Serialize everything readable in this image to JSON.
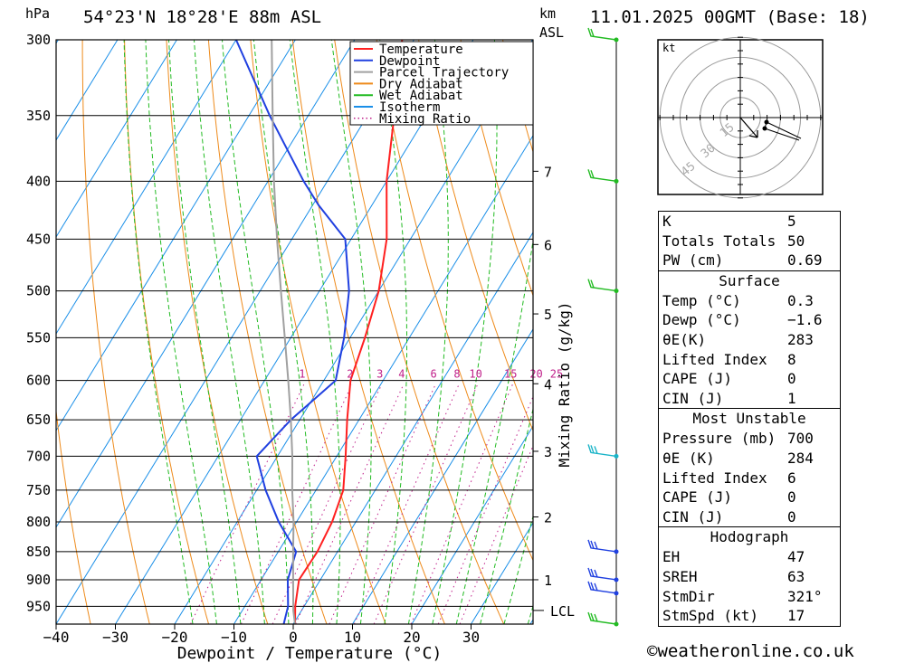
{
  "header": {
    "pressure_unit": "hPa",
    "location": "54°23'N 18°28'E 88m ASL",
    "height_unit_km": "km",
    "height_unit_asl": "ASL",
    "run": "11.01.2025 00GMT (Base: 18)"
  },
  "chart_data": {
    "type": "skew-t log-p diagram",
    "x_axis": {
      "label": "Dewpoint / Temperature (°C)",
      "ticks": [
        -40,
        -30,
        -20,
        -10,
        0,
        10,
        20,
        30
      ],
      "tick_labels": [
        "−40",
        "−30",
        "−20",
        "−10",
        "0",
        "10",
        "20",
        "30"
      ]
    },
    "y_axis": {
      "label": "hPa",
      "scale": "log",
      "ticks": [
        300,
        350,
        400,
        450,
        500,
        550,
        600,
        650,
        700,
        750,
        800,
        850,
        900,
        950
      ],
      "range": [
        300,
        985
      ]
    },
    "height_axis": {
      "label": "km ASL",
      "ticks": [
        {
          "km": "1",
          "p": 900
        },
        {
          "km": "2",
          "p": 792
        },
        {
          "km": "3",
          "p": 693
        },
        {
          "km": "4",
          "p": 604
        },
        {
          "km": "5",
          "p": 524
        },
        {
          "km": "6",
          "p": 455
        },
        {
          "km": "7",
          "p": 392
        }
      ],
      "lcl_label": "LCL",
      "lcl_p": 958
    },
    "mixing_ratio": {
      "axis_label": "Mixing Ratio (g/kg)",
      "values": [
        "1",
        "2",
        "3",
        "4",
        "6",
        "8",
        "10",
        "15",
        "20",
        "25"
      ],
      "label_p": 600
    },
    "legend": [
      {
        "name": "Temperature",
        "color": "#ff2020",
        "style": "solid"
      },
      {
        "name": "Dewpoint",
        "color": "#2040e0",
        "style": "solid"
      },
      {
        "name": "Parcel Trajectory",
        "color": "#a0a0a0",
        "style": "solid"
      },
      {
        "name": "Dry Adiabat",
        "color": "#ee8a1a",
        "style": "solid"
      },
      {
        "name": "Wet Adiabat",
        "color": "#22bb22",
        "style": "solid"
      },
      {
        "name": "Isotherm",
        "color": "#1a8fe8",
        "style": "solid"
      },
      {
        "name": "Mixing Ratio",
        "color": "#c0208a",
        "style": "dotted"
      }
    ],
    "series": [
      {
        "name": "Temperature",
        "color": "#ff2020",
        "points": [
          [
            985,
            0.3
          ],
          [
            950,
            -1.5
          ],
          [
            900,
            -3.6
          ],
          [
            850,
            -3.4
          ],
          [
            800,
            -4.0
          ],
          [
            750,
            -5.4
          ],
          [
            700,
            -8.5
          ],
          [
            650,
            -12.0
          ],
          [
            600,
            -15.5
          ],
          [
            550,
            -17.5
          ],
          [
            500,
            -20.0
          ],
          [
            450,
            -24.0
          ],
          [
            400,
            -30.0
          ],
          [
            350,
            -35.5
          ],
          [
            300,
            -42.0
          ]
        ]
      },
      {
        "name": "Dewpoint",
        "color": "#2040e0",
        "points": [
          [
            985,
            -1.6
          ],
          [
            950,
            -2.7
          ],
          [
            900,
            -5.5
          ],
          [
            850,
            -7.0
          ],
          [
            800,
            -13.0
          ],
          [
            750,
            -18.5
          ],
          [
            700,
            -23.5
          ],
          [
            650,
            -21.5
          ],
          [
            600,
            -18.0
          ],
          [
            550,
            -21.0
          ],
          [
            500,
            -25.0
          ],
          [
            450,
            -31.0
          ],
          [
            420,
            -39.0
          ],
          [
            400,
            -44.0
          ],
          [
            350,
            -56.5
          ],
          [
            300,
            -70.0
          ]
        ]
      },
      {
        "name": "Parcel Trajectory",
        "color": "#a0a0a0",
        "points": [
          [
            985,
            0.3
          ],
          [
            958,
            -1.4
          ],
          [
            900,
            -4.6
          ],
          [
            850,
            -7.5
          ],
          [
            800,
            -10.5
          ],
          [
            750,
            -14.0
          ],
          [
            700,
            -17.5
          ],
          [
            650,
            -21.5
          ],
          [
            600,
            -26.0
          ],
          [
            550,
            -31.0
          ],
          [
            500,
            -36.5
          ],
          [
            450,
            -42.5
          ],
          [
            400,
            -49.0
          ],
          [
            350,
            -56.0
          ],
          [
            300,
            -64.0
          ]
        ]
      }
    ],
    "wind_barbs": [
      {
        "p": 300,
        "km": "",
        "color": "#22bb22"
      },
      {
        "p": 400,
        "km": "",
        "color": "#22bb22"
      },
      {
        "p": 500,
        "km": "",
        "color": "#22bb22"
      },
      {
        "p": 700,
        "km": "",
        "color": "#1ab4c8"
      },
      {
        "p": 850,
        "km": "",
        "color": "#2040e0"
      },
      {
        "p": 900,
        "km": "",
        "color": "#2040e0"
      },
      {
        "p": 925,
        "km": "",
        "color": "#2040e0"
      },
      {
        "p": 985,
        "km": "",
        "color": "#22bb22"
      }
    ]
  },
  "hodograph": {
    "unit": "kt",
    "ring_labels": [
      "15",
      "30",
      "45"
    ]
  },
  "indices": {
    "k_label": "K",
    "k": "5",
    "tt_label": "Totals Totals",
    "tt": "50",
    "pw_label": "PW (cm)",
    "pw": "0.69"
  },
  "surface": {
    "title": "Surface",
    "temp_label": "Temp (°C)",
    "temp": "0.3",
    "dewp_label": "Dewp (°C)",
    "dewp": "−1.6",
    "theta_label": "θE(K)",
    "theta": "283",
    "li_label": "Lifted Index",
    "li": "8",
    "cape_label": "CAPE (J)",
    "cape": "0",
    "cin_label": "CIN (J)",
    "cin": "1"
  },
  "most_unstable": {
    "title": "Most Unstable",
    "pressure_label": "Pressure (mb)",
    "pressure": "700",
    "theta_label": "θE (K)",
    "theta": "284",
    "li_label": "Lifted Index",
    "li": "6",
    "cape_label": "CAPE (J)",
    "cape": "0",
    "cin_label": "CIN (J)",
    "cin": "0"
  },
  "hodograph_stats": {
    "title": "Hodograph",
    "eh_label": "EH",
    "eh": "47",
    "sreh_label": "SREH",
    "sreh": "63",
    "stmdir_label": "StmDir",
    "stmdir": "321°",
    "stmspd_label": "StmSpd (kt)",
    "stmspd": "17"
  },
  "footer": {
    "copyright": "©weatheronline.co.uk"
  }
}
